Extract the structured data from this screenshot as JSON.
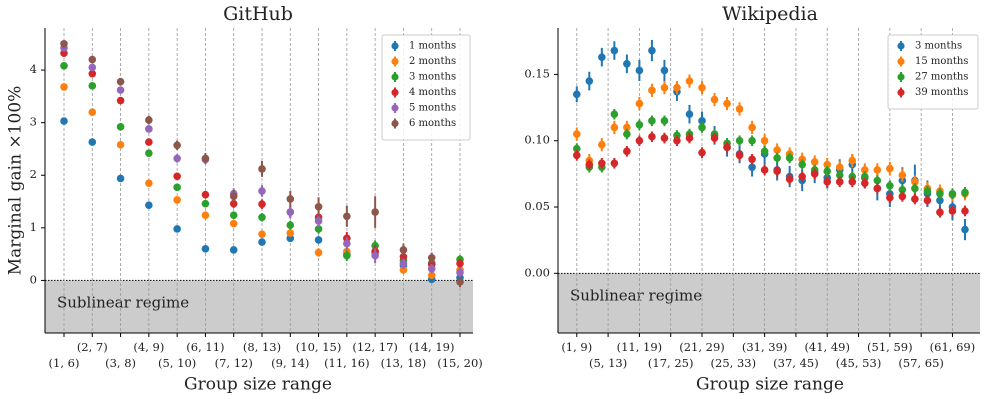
{
  "chart_data": [
    {
      "type": "errorbar",
      "title": "GitHub",
      "xlabel": "Group size range",
      "ylabel": "Marginal gain ×100%",
      "annotation": "Sublinear regime",
      "grid": "x",
      "legend": "upper right",
      "categories": [
        "(1, 6)",
        "(2, 7)",
        "(3, 8)",
        "(4, 9)",
        "(5, 10)",
        "(6, 11)",
        "(7, 12)",
        "(8, 13)",
        "(9, 14)",
        "(10, 15)",
        "(11, 16)",
        "(12, 17)",
        "(13, 18)",
        "(14, 19)",
        "(15, 20)"
      ],
      "ylim": [
        -1,
        4.8
      ],
      "yticks": [
        0,
        1,
        2,
        3,
        4
      ],
      "series": [
        {
          "name": "1 months",
          "color": "#1f77b4",
          "values": [
            3.03,
            2.63,
            1.94,
            1.43,
            0.98,
            0.6,
            0.58,
            0.73,
            0.8,
            0.77,
            0.5,
            0.53,
            0.28,
            0.02,
            0.05
          ],
          "errors": [
            0.04,
            0.05,
            0.05,
            0.05,
            0.05,
            0.05,
            0.05,
            0.06,
            0.06,
            0.07,
            0.08,
            0.08,
            0.07,
            0.06,
            0.07
          ]
        },
        {
          "name": "2 months",
          "color": "#ff7f0e",
          "values": [
            3.68,
            3.2,
            2.58,
            1.85,
            1.53,
            1.24,
            1.08,
            0.88,
            0.9,
            0.53,
            0.55,
            0.55,
            0.2,
            0.1,
            0.2
          ],
          "errors": [
            0.05,
            0.05,
            0.05,
            0.05,
            0.06,
            0.06,
            0.06,
            0.07,
            0.07,
            0.08,
            0.08,
            0.08,
            0.07,
            0.07,
            0.08
          ]
        },
        {
          "name": "3 months",
          "color": "#2ca02c",
          "values": [
            4.08,
            3.7,
            2.92,
            2.42,
            1.77,
            1.46,
            1.24,
            1.2,
            1.05,
            0.98,
            0.47,
            0.66,
            0.38,
            0.33,
            0.4
          ],
          "errors": [
            0.05,
            0.05,
            0.05,
            0.06,
            0.06,
            0.06,
            0.07,
            0.08,
            0.08,
            0.09,
            0.1,
            0.1,
            0.08,
            0.07,
            0.08
          ]
        },
        {
          "name": "4 months",
          "color": "#d62728",
          "values": [
            4.32,
            3.93,
            3.42,
            2.63,
            1.98,
            1.63,
            1.46,
            1.45,
            1.3,
            1.2,
            0.8,
            0.55,
            0.45,
            0.3,
            0.32
          ],
          "errors": [
            0.05,
            0.05,
            0.06,
            0.06,
            0.07,
            0.07,
            0.08,
            0.09,
            0.1,
            0.1,
            0.12,
            0.12,
            0.09,
            0.08,
            0.09
          ]
        },
        {
          "name": "5 months",
          "color": "#9467bd",
          "values": [
            4.42,
            4.05,
            3.62,
            2.88,
            2.32,
            2.3,
            1.65,
            1.7,
            1.3,
            1.13,
            0.7,
            0.47,
            0.32,
            0.22,
            0.15
          ],
          "errors": [
            0.05,
            0.06,
            0.06,
            0.07,
            0.08,
            0.09,
            0.1,
            0.11,
            0.12,
            0.12,
            0.12,
            0.14,
            0.1,
            0.09,
            0.1
          ]
        },
        {
          "name": "6 months",
          "color": "#8c564b",
          "values": [
            4.5,
            4.2,
            3.78,
            3.05,
            2.57,
            2.32,
            1.6,
            2.12,
            1.55,
            1.4,
            1.22,
            1.3,
            0.58,
            0.43,
            -0.03
          ],
          "errors": [
            0.06,
            0.06,
            0.07,
            0.08,
            0.09,
            0.1,
            0.12,
            0.15,
            0.15,
            0.18,
            0.2,
            0.3,
            0.12,
            0.1,
            0.1
          ]
        }
      ]
    },
    {
      "type": "errorbar",
      "title": "Wikipedia",
      "xlabel": "Group size range",
      "annotation": "Sublinear regime",
      "grid": "x",
      "legend": "upper right",
      "x": [
        0,
        1,
        2,
        3,
        4,
        5,
        6,
        7,
        8,
        9,
        10,
        11,
        12,
        13,
        14,
        15,
        16,
        17,
        18,
        19,
        20,
        21,
        22,
        23,
        24,
        25,
        26,
        27,
        28,
        29,
        30,
        31
      ],
      "xlim": [
        -1.5,
        32.2
      ],
      "xticks": [
        {
          "value": 0,
          "label": "(1, 9)"
        },
        {
          "value": 2.5,
          "label": "(5, 13)"
        },
        {
          "value": 5,
          "label": "(11, 19)"
        },
        {
          "value": 7.5,
          "label": "(17, 25)"
        },
        {
          "value": 10,
          "label": "(21, 29)"
        },
        {
          "value": 12.5,
          "label": "(25, 33)"
        },
        {
          "value": 15,
          "label": "(31, 39)"
        },
        {
          "value": 17.5,
          "label": "(37, 45)"
        },
        {
          "value": 20,
          "label": "(41, 49)"
        },
        {
          "value": 22.5,
          "label": "(45, 53)"
        },
        {
          "value": 25,
          "label": "(51, 59)"
        },
        {
          "value": 27.5,
          "label": "(57, 65)"
        },
        {
          "value": 30,
          "label": "(61, 69)"
        }
      ],
      "ylim": [
        -0.045,
        0.185
      ],
      "yticks": [
        {
          "value": 0,
          "label": "0.00"
        },
        {
          "value": 0.05,
          "label": "0.05"
        },
        {
          "value": 0.1,
          "label": "0.10"
        },
        {
          "value": 0.15,
          "label": "0.15"
        }
      ],
      "series": [
        {
          "name": "3 months",
          "color": "#1f77b4",
          "values": [
            0.135,
            0.145,
            0.163,
            0.168,
            0.158,
            0.153,
            0.168,
            0.153,
            0.137,
            0.12,
            0.115,
            0.104,
            0.095,
            0.09,
            0.08,
            0.09,
            0.078,
            0.073,
            0.07,
            0.076,
            0.072,
            0.078,
            0.082,
            0.072,
            0.064,
            0.06,
            0.07,
            0.07,
            0.06,
            0.055,
            0.05,
            0.033
          ],
          "errors": [
            0.006,
            0.007,
            0.007,
            0.007,
            0.007,
            0.008,
            0.008,
            0.008,
            0.007,
            0.007,
            0.007,
            0.007,
            0.007,
            0.007,
            0.007,
            0.008,
            0.008,
            0.008,
            0.008,
            0.008,
            0.008,
            0.008,
            0.008,
            0.008,
            0.009,
            0.01,
            0.01,
            0.012,
            0.01,
            0.01,
            0.01,
            0.008
          ]
        },
        {
          "name": "15 months",
          "color": "#ff7f0e",
          "values": [
            0.105,
            0.085,
            0.097,
            0.11,
            0.11,
            0.128,
            0.138,
            0.14,
            0.14,
            0.145,
            0.14,
            0.131,
            0.128,
            0.124,
            0.11,
            0.1,
            0.093,
            0.09,
            0.086,
            0.084,
            0.082,
            0.08,
            0.085,
            0.078,
            0.078,
            0.079,
            0.074,
            0.069,
            0.064,
            0.062,
            0.059,
            0.06
          ],
          "errors": [
            0.005,
            0.005,
            0.005,
            0.005,
            0.005,
            0.005,
            0.005,
            0.005,
            0.005,
            0.005,
            0.005,
            0.005,
            0.005,
            0.005,
            0.005,
            0.005,
            0.005,
            0.005,
            0.005,
            0.005,
            0.005,
            0.005,
            0.005,
            0.005,
            0.005,
            0.005,
            0.005,
            0.005,
            0.005,
            0.005,
            0.005,
            0.005
          ]
        },
        {
          "name": "27 months",
          "color": "#2ca02c",
          "values": [
            0.094,
            0.08,
            0.08,
            0.12,
            0.105,
            0.112,
            0.115,
            0.115,
            0.104,
            0.105,
            0.11,
            0.105,
            0.098,
            0.1,
            0.1,
            0.092,
            0.087,
            0.087,
            0.082,
            0.078,
            0.077,
            0.074,
            0.073,
            0.073,
            0.07,
            0.066,
            0.063,
            0.064,
            0.062,
            0.06,
            0.06,
            0.061
          ],
          "errors": [
            0.004,
            0.004,
            0.004,
            0.004,
            0.004,
            0.004,
            0.004,
            0.004,
            0.004,
            0.004,
            0.004,
            0.004,
            0.004,
            0.004,
            0.004,
            0.004,
            0.004,
            0.004,
            0.004,
            0.004,
            0.004,
            0.004,
            0.004,
            0.004,
            0.004,
            0.004,
            0.004,
            0.004,
            0.004,
            0.004,
            0.004,
            0.004
          ]
        },
        {
          "name": "39 months",
          "color": "#d62728",
          "values": [
            0.089,
            0.082,
            0.083,
            0.083,
            0.092,
            0.1,
            0.103,
            0.102,
            0.1,
            0.102,
            0.091,
            0.102,
            0.095,
            0.089,
            0.086,
            0.078,
            0.077,
            0.071,
            0.073,
            0.075,
            0.069,
            0.069,
            0.069,
            0.068,
            0.064,
            0.057,
            0.058,
            0.056,
            0.055,
            0.046,
            0.047,
            0.047
          ],
          "errors": [
            0.004,
            0.004,
            0.004,
            0.004,
            0.004,
            0.004,
            0.004,
            0.004,
            0.004,
            0.004,
            0.004,
            0.004,
            0.004,
            0.004,
            0.004,
            0.004,
            0.004,
            0.004,
            0.004,
            0.004,
            0.004,
            0.004,
            0.004,
            0.004,
            0.004,
            0.004,
            0.004,
            0.004,
            0.004,
            0.004,
            0.004,
            0.004
          ]
        }
      ]
    }
  ]
}
